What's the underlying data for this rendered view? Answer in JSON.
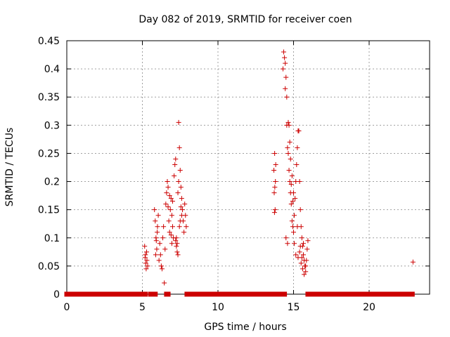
{
  "chart_data": {
    "type": "scatter",
    "title": "Day 082 of 2019, SRMTID for receiver coen",
    "xlabel": "GPS time / hours",
    "ylabel": "SRMTID / TECUs",
    "xlim": [
      0,
      24
    ],
    "ylim": [
      0,
      0.45
    ],
    "xticks": [
      0,
      5,
      10,
      15,
      20
    ],
    "yticks": [
      0,
      0.05,
      0.1,
      0.15,
      0.2,
      0.25,
      0.3,
      0.35,
      0.4,
      0.45
    ],
    "xtick_labels": [
      "0",
      "5",
      "10",
      "15",
      "20"
    ],
    "ytick_labels": [
      "0",
      "0.05",
      "0.1",
      "0.15",
      "0.2",
      "0.25",
      "0.3",
      "0.35",
      "0.4",
      "0.45"
    ],
    "grid": true,
    "marker": "+",
    "marker_color": "#cc0000",
    "series": [
      {
        "name": "SRMTID",
        "zero_segments": [
          [
            0.0,
            5.2
          ],
          [
            5.55,
            5.85
          ],
          [
            6.6,
            6.7
          ],
          [
            7.95,
            13.65
          ],
          [
            13.85,
            14.4
          ],
          [
            15.95,
            22.85
          ]
        ],
        "points": [
          [
            5.15,
            0.085
          ],
          [
            5.2,
            0.07
          ],
          [
            5.22,
            0.055
          ],
          [
            5.25,
            0.045
          ],
          [
            5.3,
            0.06
          ],
          [
            5.18,
            0.065
          ],
          [
            5.28,
            0.075
          ],
          [
            5.35,
            0.05
          ],
          [
            5.8,
            0.15
          ],
          [
            5.85,
            0.13
          ],
          [
            5.9,
            0.1
          ],
          [
            5.95,
            0.08
          ],
          [
            6.0,
            0.12
          ],
          [
            6.05,
            0.14
          ],
          [
            6.1,
            0.06
          ],
          [
            5.88,
            0.07
          ],
          [
            5.92,
            0.095
          ],
          [
            5.98,
            0.11
          ],
          [
            6.15,
            0.09
          ],
          [
            6.2,
            0.07
          ],
          [
            6.25,
            0.05
          ],
          [
            6.3,
            0.045
          ],
          [
            6.35,
            0.1
          ],
          [
            6.4,
            0.12
          ],
          [
            6.45,
            0.02
          ],
          [
            6.5,
            0.08
          ],
          [
            6.55,
            0.16
          ],
          [
            6.6,
            0.18
          ],
          [
            6.65,
            0.2
          ],
          [
            6.7,
            0.19
          ],
          [
            6.75,
            0.13
          ],
          [
            6.8,
            0.11
          ],
          [
            6.85,
            0.15
          ],
          [
            6.9,
            0.17
          ],
          [
            6.95,
            0.14
          ],
          [
            7.0,
            0.12
          ],
          [
            7.05,
            0.1
          ],
          [
            7.1,
            0.21
          ],
          [
            7.15,
            0.23
          ],
          [
            7.2,
            0.24
          ],
          [
            7.25,
            0.1
          ],
          [
            7.3,
            0.09
          ],
          [
            7.35,
            0.07
          ],
          [
            7.4,
            0.305
          ],
          [
            7.45,
            0.26
          ],
          [
            7.5,
            0.22
          ],
          [
            7.55,
            0.19
          ],
          [
            7.6,
            0.17
          ],
          [
            7.65,
            0.15
          ],
          [
            7.7,
            0.13
          ],
          [
            7.75,
            0.11
          ],
          [
            7.8,
            0.16
          ],
          [
            7.85,
            0.14
          ],
          [
            7.9,
            0.12
          ],
          [
            7.4,
            0.2
          ],
          [
            7.35,
            0.18
          ],
          [
            7.55,
            0.155
          ],
          [
            7.6,
            0.14
          ],
          [
            6.9,
            0.105
          ],
          [
            6.95,
            0.09
          ],
          [
            7.2,
            0.095
          ],
          [
            7.3,
            0.075
          ],
          [
            7.25,
            0.085
          ],
          [
            7.45,
            0.12
          ],
          [
            7.5,
            0.13
          ],
          [
            6.7,
            0.155
          ],
          [
            6.8,
            0.175
          ],
          [
            7.0,
            0.165
          ],
          [
            13.75,
            0.25
          ],
          [
            13.7,
            0.22
          ],
          [
            13.8,
            0.2
          ],
          [
            13.72,
            0.18
          ],
          [
            13.78,
            0.15
          ],
          [
            13.74,
            0.145
          ],
          [
            13.82,
            0.23
          ],
          [
            13.76,
            0.19
          ],
          [
            14.3,
            0.4
          ],
          [
            14.35,
            0.43
          ],
          [
            14.4,
            0.42
          ],
          [
            14.45,
            0.365
          ],
          [
            14.5,
            0.385
          ],
          [
            14.55,
            0.3
          ],
          [
            14.6,
            0.26
          ],
          [
            14.65,
            0.25
          ],
          [
            14.7,
            0.22
          ],
          [
            14.75,
            0.2
          ],
          [
            14.8,
            0.18
          ],
          [
            14.85,
            0.16
          ],
          [
            14.9,
            0.13
          ],
          [
            14.95,
            0.12
          ],
          [
            15.0,
            0.11
          ],
          [
            15.05,
            0.14
          ],
          [
            15.1,
            0.17
          ],
          [
            15.15,
            0.2
          ],
          [
            15.2,
            0.23
          ],
          [
            15.25,
            0.26
          ],
          [
            15.3,
            0.29
          ],
          [
            15.35,
            0.29
          ],
          [
            15.4,
            0.2
          ],
          [
            15.45,
            0.15
          ],
          [
            15.5,
            0.12
          ],
          [
            15.55,
            0.1
          ],
          [
            15.6,
            0.085
          ],
          [
            15.65,
            0.07
          ],
          [
            15.7,
            0.06
          ],
          [
            15.75,
            0.05
          ],
          [
            15.8,
            0.04
          ],
          [
            15.85,
            0.06
          ],
          [
            15.9,
            0.08
          ],
          [
            15.95,
            0.095
          ],
          [
            14.5,
            0.1
          ],
          [
            14.6,
            0.09
          ],
          [
            14.7,
            0.3
          ],
          [
            14.65,
            0.305
          ],
          [
            14.55,
            0.35
          ],
          [
            14.45,
            0.41
          ],
          [
            14.8,
            0.24
          ],
          [
            14.9,
            0.21
          ],
          [
            15.0,
            0.18
          ],
          [
            15.3,
            0.065
          ],
          [
            15.4,
            0.075
          ],
          [
            15.5,
            0.055
          ],
          [
            15.6,
            0.045
          ],
          [
            15.7,
            0.035
          ],
          [
            15.8,
            0.05
          ],
          [
            15.65,
            0.09
          ],
          [
            14.75,
            0.27
          ],
          [
            14.85,
            0.195
          ],
          [
            14.95,
            0.165
          ],
          [
            15.05,
            0.09
          ],
          [
            15.15,
            0.07
          ],
          [
            15.25,
            0.12
          ],
          [
            15.45,
            0.085
          ],
          [
            15.55,
            0.065
          ],
          [
            22.9,
            0.057
          ]
        ]
      }
    ]
  }
}
